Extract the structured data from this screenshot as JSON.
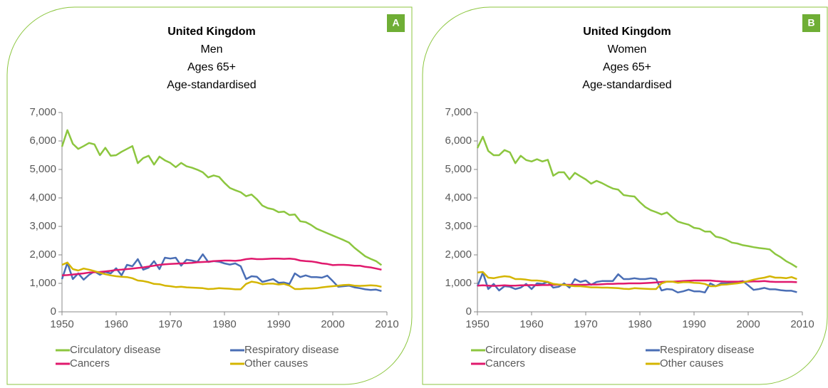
{
  "chart_data": [
    {
      "type": "line",
      "label": "A",
      "title": "United Kingdom",
      "subtitle": [
        "Men",
        "Ages 65+",
        "Age-standardised"
      ],
      "xlim": [
        1950,
        2010
      ],
      "xticks": [
        1950,
        1960,
        1970,
        1980,
        1990,
        2000,
        2010
      ],
      "ylim": [
        0,
        7000
      ],
      "yticks": [
        0,
        {
          "value": 1000,
          "label": "1,000"
        },
        {
          "value": 2000,
          "label": "2,000"
        },
        {
          "value": 3000,
          "label": "3,000"
        },
        {
          "value": 4000,
          "label": "4,000"
        },
        {
          "value": 5000,
          "label": "5,000"
        },
        {
          "value": 6000,
          "label": "6,000"
        },
        {
          "value": 7000,
          "label": "7,000"
        }
      ],
      "legend": "bottom",
      "x": [
        1950,
        1951,
        1952,
        1953,
        1954,
        1955,
        1956,
        1957,
        1958,
        1959,
        1960,
        1961,
        1962,
        1963,
        1964,
        1965,
        1966,
        1967,
        1968,
        1969,
        1970,
        1971,
        1972,
        1973,
        1974,
        1975,
        1976,
        1977,
        1978,
        1979,
        1980,
        1981,
        1982,
        1983,
        1984,
        1985,
        1986,
        1987,
        1988,
        1989,
        1990,
        1991,
        1992,
        1993,
        1994,
        1995,
        1996,
        1997,
        1998,
        1999,
        2000,
        2001,
        2002,
        2003,
        2004,
        2005,
        2006,
        2007,
        2008,
        2009
      ],
      "series": [
        {
          "name": "Circulatory disease",
          "color": "#8cc63f",
          "values": [
            5800,
            6380,
            5900,
            5720,
            5820,
            5930,
            5880,
            5500,
            5760,
            5480,
            5500,
            5620,
            5720,
            5820,
            5220,
            5400,
            5480,
            5170,
            5450,
            5320,
            5230,
            5080,
            5230,
            5110,
            5060,
            4990,
            4900,
            4720,
            4790,
            4740,
            4530,
            4350,
            4270,
            4200,
            4060,
            4120,
            3950,
            3730,
            3640,
            3600,
            3500,
            3520,
            3400,
            3420,
            3180,
            3150,
            3050,
            2920,
            2840,
            2760,
            2680,
            2600,
            2520,
            2430,
            2250,
            2100,
            1950,
            1860,
            1780,
            1640
          ]
        },
        {
          "name": "Respiratory disease",
          "color": "#4a6eb5",
          "values": [
            1150,
            1720,
            1150,
            1350,
            1130,
            1300,
            1420,
            1300,
            1400,
            1350,
            1530,
            1280,
            1650,
            1600,
            1850,
            1480,
            1550,
            1780,
            1500,
            1900,
            1870,
            1900,
            1620,
            1830,
            1800,
            1750,
            2020,
            1750,
            1780,
            1760,
            1700,
            1660,
            1700,
            1600,
            1150,
            1250,
            1230,
            1050,
            1100,
            1150,
            1020,
            1030,
            980,
            1350,
            1220,
            1280,
            1220,
            1220,
            1200,
            1270,
            1080,
            880,
            900,
            920,
            860,
            830,
            790,
            770,
            780,
            730
          ]
        },
        {
          "name": "Cancers",
          "color": "#e0196d",
          "values": [
            1280,
            1290,
            1310,
            1330,
            1350,
            1380,
            1390,
            1400,
            1420,
            1440,
            1470,
            1480,
            1500,
            1520,
            1540,
            1560,
            1590,
            1620,
            1650,
            1670,
            1680,
            1690,
            1700,
            1710,
            1720,
            1740,
            1750,
            1760,
            1780,
            1790,
            1800,
            1800,
            1790,
            1810,
            1850,
            1870,
            1850,
            1850,
            1860,
            1870,
            1870,
            1860,
            1870,
            1850,
            1800,
            1780,
            1770,
            1740,
            1700,
            1680,
            1640,
            1650,
            1650,
            1640,
            1620,
            1620,
            1580,
            1560,
            1520,
            1480
          ]
        },
        {
          "name": "Other causes",
          "color": "#d4b500",
          "values": [
            1650,
            1730,
            1500,
            1450,
            1520,
            1480,
            1430,
            1370,
            1320,
            1280,
            1250,
            1230,
            1220,
            1180,
            1100,
            1080,
            1040,
            980,
            970,
            920,
            900,
            870,
            880,
            860,
            850,
            840,
            830,
            800,
            810,
            830,
            820,
            810,
            790,
            790,
            980,
            1060,
            1030,
            970,
            990,
            990,
            960,
            980,
            920,
            800,
            800,
            820,
            820,
            830,
            860,
            880,
            900,
            920,
            940,
            950,
            920,
            910,
            920,
            930,
            920,
            880
          ]
        }
      ]
    },
    {
      "type": "line",
      "label": "B",
      "title": "United Kingdom",
      "subtitle": [
        "Women",
        "Ages 65+",
        "Age-standardised"
      ],
      "xlim": [
        1950,
        2010
      ],
      "xticks": [
        1950,
        1960,
        1970,
        1980,
        1990,
        2000,
        2010
      ],
      "ylim": [
        0,
        7000
      ],
      "yticks": [
        0,
        {
          "value": 1000,
          "label": "1,000"
        },
        {
          "value": 2000,
          "label": "2,000"
        },
        {
          "value": 3000,
          "label": "3,000"
        },
        {
          "value": 4000,
          "label": "4,000"
        },
        {
          "value": 5000,
          "label": "5,000"
        },
        {
          "value": 6000,
          "label": "6,000"
        },
        {
          "value": 7000,
          "label": "7,000"
        }
      ],
      "legend": "bottom",
      "x": [
        1950,
        1951,
        1952,
        1953,
        1954,
        1955,
        1956,
        1957,
        1958,
        1959,
        1960,
        1961,
        1962,
        1963,
        1964,
        1965,
        1966,
        1967,
        1968,
        1969,
        1970,
        1971,
        1972,
        1973,
        1974,
        1975,
        1976,
        1977,
        1978,
        1979,
        1980,
        1981,
        1982,
        1983,
        1984,
        1985,
        1986,
        1987,
        1988,
        1989,
        1990,
        1991,
        1992,
        1993,
        1994,
        1995,
        1996,
        1997,
        1998,
        1999,
        2000,
        2001,
        2002,
        2003,
        2004,
        2005,
        2006,
        2007,
        2008,
        2009
      ],
      "series": [
        {
          "name": "Circulatory disease",
          "color": "#8cc63f",
          "values": [
            5750,
            6150,
            5650,
            5500,
            5500,
            5680,
            5600,
            5220,
            5480,
            5330,
            5280,
            5360,
            5280,
            5340,
            4780,
            4900,
            4900,
            4650,
            4880,
            4760,
            4650,
            4500,
            4600,
            4520,
            4420,
            4330,
            4290,
            4100,
            4070,
            4050,
            3850,
            3680,
            3570,
            3500,
            3420,
            3490,
            3320,
            3170,
            3110,
            3060,
            2950,
            2920,
            2820,
            2820,
            2640,
            2600,
            2530,
            2430,
            2400,
            2340,
            2310,
            2270,
            2240,
            2220,
            2190,
            2030,
            1920,
            1780,
            1680,
            1560
          ]
        },
        {
          "name": "Respiratory disease",
          "color": "#4a6eb5",
          "values": [
            900,
            1380,
            800,
            980,
            750,
            900,
            880,
            800,
            850,
            980,
            800,
            1000,
            980,
            1050,
            850,
            880,
            1000,
            850,
            1150,
            1050,
            1100,
            950,
            1050,
            1080,
            1080,
            1080,
            1320,
            1150,
            1150,
            1180,
            1150,
            1150,
            1180,
            1150,
            750,
            800,
            780,
            680,
            720,
            780,
            720,
            720,
            680,
            1000,
            900,
            1000,
            1000,
            1020,
            1050,
            1080,
            930,
            770,
            800,
            840,
            790,
            790,
            760,
            740,
            740,
            690
          ]
        },
        {
          "name": "Cancers",
          "color": "#e0196d",
          "values": [
            920,
            930,
            920,
            910,
            920,
            930,
            920,
            920,
            930,
            930,
            940,
            930,
            940,
            940,
            950,
            950,
            950,
            950,
            950,
            950,
            950,
            960,
            960,
            970,
            980,
            980,
            990,
            990,
            1000,
            1000,
            1000,
            1010,
            1020,
            1030,
            1050,
            1060,
            1060,
            1070,
            1080,
            1090,
            1100,
            1100,
            1100,
            1100,
            1080,
            1070,
            1060,
            1060,
            1060,
            1060,
            1060,
            1070,
            1070,
            1080,
            1060,
            1050,
            1050,
            1050,
            1050,
            1040
          ]
        },
        {
          "name": "Other causes",
          "color": "#d4b500",
          "values": [
            1380,
            1400,
            1200,
            1180,
            1220,
            1250,
            1230,
            1150,
            1150,
            1130,
            1100,
            1100,
            1080,
            1050,
            980,
            960,
            950,
            920,
            900,
            900,
            880,
            860,
            860,
            850,
            850,
            840,
            830,
            810,
            800,
            830,
            820,
            810,
            800,
            800,
            1000,
            1060,
            1060,
            1020,
            1040,
            1040,
            1020,
            1010,
            980,
            900,
            900,
            950,
            960,
            980,
            1000,
            1030,
            1080,
            1130,
            1170,
            1200,
            1250,
            1200,
            1200,
            1180,
            1220,
            1150
          ]
        }
      ]
    }
  ]
}
